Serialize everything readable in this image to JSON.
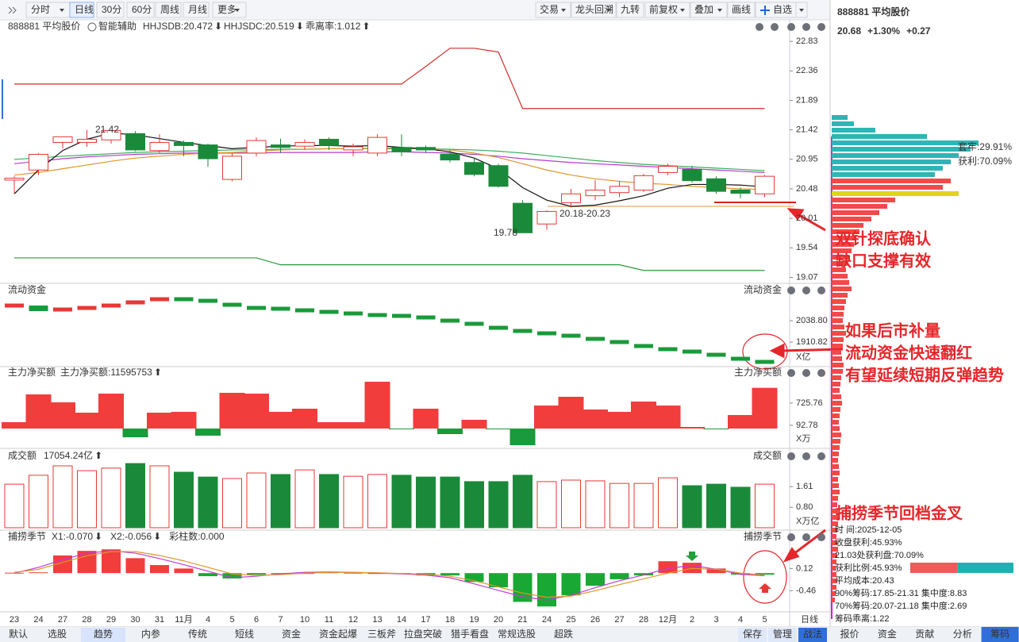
{
  "toolbar": {
    "left": [
      "分时",
      "日线",
      "30分",
      "60分",
      "周线",
      "月线",
      "更多"
    ],
    "active": 1,
    "right": [
      "交易",
      "龙头回溯",
      "九转",
      "前复权",
      "叠加",
      "画线",
      "自选"
    ]
  },
  "legend": {
    "name": "888881 平均股价",
    "assist": "智能辅助",
    "items": [
      {
        "text": "HHJSDB:20.472",
        "arrow": "⬇",
        "color": "#d9911c",
        "arrow_color": "#23a03a"
      },
      {
        "text": "HHJSDC:20.519",
        "arrow": "⬇",
        "color": "#e53935",
        "arrow_color": "#23a03a"
      },
      {
        "text": "乖离率:1.012",
        "arrow": "⬆",
        "color": "#d9911c",
        "arrow_color": "#e53935"
      }
    ]
  },
  "dates": [
    "23",
    "24",
    "27",
    "28",
    "29",
    "30",
    "31",
    "11月",
    "4",
    "5",
    "6",
    "7",
    "10",
    "11",
    "12",
    "13",
    "14",
    "17",
    "18",
    "19",
    "20",
    "21",
    "24",
    "25",
    "26",
    "27",
    "28",
    "12月",
    "2",
    "3",
    "4",
    "5"
  ],
  "period_label": "日线",
  "price": {
    "ylim": [
      19.0,
      22.92
    ],
    "yticks": [
      22.83,
      22.36,
      21.89,
      21.42,
      20.95,
      20.48,
      20.01,
      19.54,
      19.07
    ],
    "up_color": "#e53935",
    "down_color": "#1a8a3a",
    "candles": {
      "open": [
        20.62,
        20.78,
        21.22,
        21.22,
        21.26,
        21.36,
        21.09,
        21.22,
        21.18,
        20.63,
        21.05,
        21.18,
        21.16,
        21.27,
        21.1,
        21.05,
        21.14,
        21.14,
        21.03,
        20.9,
        20.85,
        20.25,
        19.92,
        20.26,
        20.37,
        20.42,
        20.46,
        20.74,
        20.79,
        20.64,
        20.46,
        20.4
      ],
      "close": [
        20.65,
        21.03,
        21.31,
        21.27,
        21.41,
        21.1,
        21.22,
        21.17,
        20.96,
        21.0,
        21.25,
        21.14,
        21.22,
        21.17,
        21.15,
        21.3,
        21.07,
        21.1,
        20.94,
        20.71,
        20.52,
        19.78,
        20.12,
        20.4,
        20.46,
        20.52,
        20.69,
        20.84,
        20.61,
        20.44,
        20.41,
        20.68
      ],
      "high": [
        20.68,
        21.05,
        21.3,
        21.42,
        21.4,
        21.4,
        21.35,
        21.25,
        21.2,
        21.05,
        21.3,
        21.28,
        21.27,
        21.3,
        21.2,
        21.35,
        21.35,
        21.17,
        21.1,
        20.97,
        20.88,
        20.3,
        20.14,
        20.48,
        20.62,
        20.6,
        20.72,
        20.88,
        20.85,
        20.68,
        20.5,
        20.7
      ],
      "low": [
        20.4,
        20.7,
        21.12,
        21.15,
        21.2,
        21.08,
        21.05,
        21.0,
        20.83,
        20.6,
        21.0,
        21.05,
        21.1,
        21.1,
        21.0,
        21.0,
        21.0,
        21.05,
        20.9,
        20.68,
        20.5,
        19.78,
        19.83,
        20.18,
        20.3,
        20.35,
        20.43,
        20.7,
        20.58,
        20.4,
        20.33,
        20.35
      ]
    },
    "lines": [
      {
        "color": "#d42b2b",
        "values": [
          22.15,
          22.15,
          22.15,
          22.15,
          22.15,
          22.15,
          22.15,
          22.15,
          22.15,
          22.15,
          22.15,
          22.15,
          22.15,
          22.15,
          22.15,
          22.15,
          22.15,
          22.43,
          22.72,
          22.72,
          22.66,
          21.76,
          21.76,
          21.76,
          21.76,
          21.76,
          21.76,
          21.76,
          21.76,
          21.76,
          21.76,
          21.76
        ]
      },
      {
        "color": "#2a9a3a",
        "values": [
          19.38,
          19.38,
          19.38,
          19.38,
          19.38,
          19.38,
          19.38,
          19.38,
          19.38,
          19.38,
          19.38,
          19.27,
          19.27,
          19.27,
          19.27,
          19.27,
          19.27,
          19.27,
          19.27,
          19.27,
          19.27,
          19.27,
          19.27,
          19.27,
          19.27,
          19.27,
          19.18,
          19.18,
          19.18,
          19.18,
          19.18,
          19.18
        ]
      },
      {
        "color": "#3cae5a",
        "values": [
          20.95,
          20.97,
          21.0,
          21.02,
          21.04,
          21.06,
          21.07,
          21.08,
          21.09,
          21.1,
          21.1,
          21.11,
          21.11,
          21.12,
          21.12,
          21.12,
          21.12,
          21.12,
          21.11,
          21.1,
          21.08,
          21.05,
          21.01,
          20.97,
          20.93,
          20.9,
          20.87,
          20.85,
          20.83,
          20.81,
          20.79,
          20.77
        ]
      },
      {
        "color": "#b43ccf",
        "values": [
          20.88,
          20.92,
          20.96,
          20.99,
          21.01,
          21.03,
          21.04,
          21.05,
          21.05,
          21.05,
          21.05,
          21.06,
          21.06,
          21.06,
          21.06,
          21.07,
          21.07,
          21.06,
          21.05,
          21.03,
          21.0,
          20.96,
          20.93,
          20.9,
          20.88,
          20.86,
          20.84,
          20.82,
          20.8,
          20.78,
          20.76,
          20.74
        ]
      },
      {
        "color": "#e0962a",
        "values": [
          20.7,
          20.74,
          20.8,
          20.86,
          20.92,
          20.97,
          21.0,
          21.03,
          21.05,
          21.06,
          21.08,
          21.1,
          21.11,
          21.12,
          21.12,
          21.13,
          21.13,
          21.12,
          21.1,
          21.05,
          20.98,
          20.88,
          20.78,
          20.7,
          20.64,
          20.6,
          20.57,
          20.55,
          20.52,
          20.5,
          20.48,
          20.47
        ]
      },
      {
        "color": "#111111",
        "values": [
          20.4,
          20.78,
          21.09,
          21.27,
          21.37,
          21.34,
          21.28,
          21.22,
          21.17,
          21.12,
          21.14,
          21.16,
          21.17,
          21.17,
          21.16,
          21.17,
          21.14,
          21.12,
          21.07,
          20.97,
          20.8,
          20.5,
          20.3,
          20.2,
          20.22,
          20.29,
          20.37,
          20.49,
          20.55,
          20.55,
          20.54,
          20.51
        ]
      }
    ],
    "annotations": [
      {
        "text": "21.42"
      },
      {
        "text": "19.78"
      },
      {
        "text": "20.18-20.23"
      }
    ]
  },
  "flow": {
    "title": "流动资金",
    "unit": "X亿",
    "ylim": [
      1764,
      2257
    ],
    "yticks": [
      {
        "value": 2038.8,
        "label": "2038.80"
      },
      1910.82
    ],
    "values": [
      2128.9,
      2095.7,
      2105.2,
      2114.6,
      2128.9,
      2147.8,
      2166.8,
      2166.8,
      2157.3,
      2133.6,
      2114.6,
      2109.9,
      2100.4,
      2091.0,
      2081.5,
      2072.0,
      2067.2,
      2057.8,
      2038.8,
      2019.8,
      1996.1,
      1977.2,
      1963.0,
      1948.7,
      1929.8,
      1910.8,
      1887.1,
      1868.2,
      1853.9,
      1834.9,
      1811.2,
      1792.3
    ]
  },
  "main": {
    "title": "主力净买额",
    "label": "主力净买额:11595753",
    "arrow": "⬆",
    "unit": "X万",
    "ylim": [
      -565,
      1695
    ],
    "yticks": [
      725.76,
      92.78
    ],
    "values": [
      181,
      972,
      746,
      452,
      994,
      -249,
      452,
      475,
      -203,
      1017,
      994,
      475,
      565,
      181,
      181,
      1333,
      -23,
      565,
      -158,
      249,
      -23,
      -475,
      655,
      904,
      542,
      475,
      768,
      655,
      45,
      -23,
      384,
      1159.6
    ]
  },
  "turnover": {
    "title": "成交额",
    "label": "17054.24亿",
    "arrow": "⬆",
    "unit": "X万亿",
    "ylim": [
      0,
      3.0
    ],
    "yticks": [
      1.61,
      {
        "value": 0.8,
        "label": "0.80"
      }
    ],
    "values": [
      1.71,
      2.06,
      2.43,
      2.24,
      2.34,
      2.52,
      2.43,
      2.18,
      1.99,
      1.93,
      2.15,
      2.09,
      2.27,
      2.09,
      2.02,
      2.09,
      2.06,
      1.99,
      1.99,
      1.81,
      1.81,
      2.06,
      1.81,
      1.87,
      1.84,
      1.74,
      1.74,
      1.96,
      1.65,
      1.71,
      1.59,
      1.71
    ]
  },
  "season": {
    "title": "捕捞季节",
    "ylim": [
      -0.99,
      0.77
    ],
    "yticks": [
      0.12,
      -0.46
    ],
    "labels": [
      {
        "text": "X1:-0.070",
        "arrow": "⬇",
        "color": "#e0962a"
      },
      {
        "text": "X2:-0.056",
        "arrow": "⬇",
        "color": "#c23bd4"
      },
      {
        "text": "彩柱数:0.000",
        "arrow": "",
        "color": "#23a03a"
      }
    ],
    "values": [
      0.01,
      0.02,
      0.46,
      0.58,
      0.62,
      0.39,
      0.21,
      0.12,
      -0.08,
      -0.14,
      -0.04,
      -0.02,
      0.0,
      0.02,
      0.01,
      0.0,
      -0.02,
      -0.06,
      -0.06,
      -0.23,
      -0.37,
      -0.75,
      -0.87,
      -0.58,
      -0.33,
      -0.16,
      -0.06,
      0.31,
      0.27,
      0.12,
      -0.04,
      -0.04
    ],
    "x1": {
      "color": "#c23bd4",
      "values": [
        0.0,
        0.15,
        0.35,
        0.52,
        0.58,
        0.52,
        0.38,
        0.22,
        0.05,
        -0.12,
        -0.08,
        -0.02,
        0.02,
        0.03,
        0.02,
        0.0,
        -0.02,
        -0.05,
        -0.12,
        -0.28,
        -0.45,
        -0.62,
        -0.7,
        -0.58,
        -0.38,
        -0.2,
        -0.05,
        0.12,
        0.2,
        0.1,
        -0.03,
        -0.07
      ]
    },
    "x2": {
      "color": "#e0962a",
      "values": [
        0.02,
        0.1,
        0.28,
        0.45,
        0.56,
        0.56,
        0.46,
        0.32,
        0.15,
        -0.02,
        -0.06,
        -0.04,
        0.0,
        0.02,
        0.02,
        0.01,
        -0.01,
        -0.03,
        -0.08,
        -0.2,
        -0.36,
        -0.52,
        -0.63,
        -0.6,
        -0.46,
        -0.3,
        -0.15,
        0.0,
        0.12,
        0.1,
        0.0,
        -0.056
      ]
    }
  },
  "notes": [
    "双针探底确认",
    "缺口支撑有效",
    "如果后市补量",
    "流动资金快速翻红",
    "有望延续短期反弹趋势",
    "捕捞季节回档金叉"
  ],
  "sidebar": {
    "title": "888881 平均股价",
    "price": "20.68",
    "pct": "+1.30%",
    "change": "+0.27",
    "chip_labels": [
      "套牢:29.91%",
      "获利:70.09%"
    ],
    "chips": [
      {
        "color": "#2fb5b5",
        "values": [
          20,
          28,
          55,
          120,
          185,
          175,
          160,
          150,
          140,
          130
        ]
      },
      {
        "color": "#f24949",
        "values": [
          150,
          140
        ]
      },
      {
        "color": "#e3d21e",
        "values": [
          160
        ]
      },
      {
        "color": "#f24949",
        "values": [
          80,
          70,
          60,
          50,
          40,
          35,
          30,
          28,
          25,
          22,
          20,
          18,
          20,
          22,
          25,
          20,
          18,
          16,
          15,
          14,
          16,
          18,
          15,
          14,
          12,
          13,
          15,
          14,
          12,
          11,
          10,
          12,
          13,
          11,
          10,
          9,
          10,
          12,
          11,
          10,
          9,
          8,
          9,
          10,
          8,
          9,
          10,
          8,
          7,
          8,
          9,
          8,
          7,
          6,
          7,
          8,
          7,
          6,
          5,
          6,
          7,
          6,
          5,
          4
        ]
      }
    ],
    "info": [
      "时    间:2025-12-05",
      "收盘获利:45.93%",
      "21.03处获利盘:70.09%",
      "获利比例:45.93%",
      "平均成本:20.43",
      "90%筹码:17.85-21.31 集中度:8.83",
      "70%筹码:20.07-21.18 集中度:2.69",
      "筹码乖离:1.22"
    ],
    "profit_bar": {
      "value": 45.93,
      "colors": [
        "#f05a5a",
        "#1fb2b2"
      ]
    },
    "tabs": [
      "报价",
      "资金",
      "贡献",
      "分析",
      "筹码"
    ],
    "active": 4
  },
  "bottom_tabs": {
    "left": [
      "默认",
      "选股",
      "趋势",
      "内参",
      "传统",
      "短线",
      "资金",
      "资金起爆",
      "三板斧",
      "拉盘突破",
      "猎手看盘",
      "常规选股",
      "超跌"
    ],
    "active": 2,
    "right": [
      "保存",
      "管理",
      "战法"
    ]
  }
}
